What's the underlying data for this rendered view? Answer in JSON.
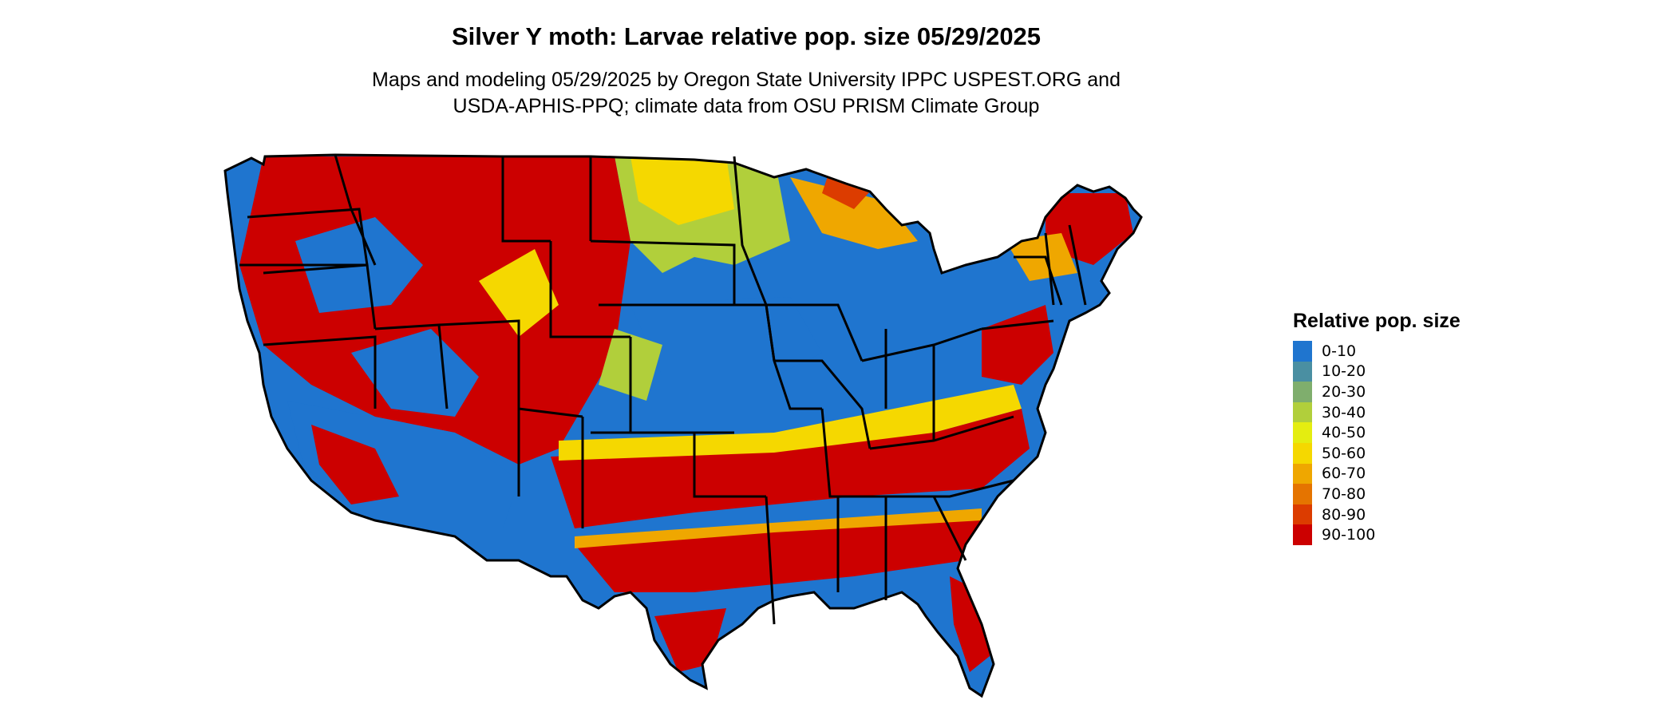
{
  "title": "Silver Y moth: Larvae relative pop. size 05/29/2025",
  "subtitle_line1": "Maps and modeling 05/29/2025 by Oregon State University IPPC USPEST.ORG and",
  "subtitle_line2": "USDA-APHIS-PPQ; climate data from OSU PRISM Climate Group",
  "legend": {
    "title": "Relative pop. size",
    "items": [
      {
        "label": "0-10",
        "color": "#1f75cf"
      },
      {
        "label": "10-20",
        "color": "#4a8fa2"
      },
      {
        "label": "20-30",
        "color": "#7fae6d"
      },
      {
        "label": "30-40",
        "color": "#b1cf3b"
      },
      {
        "label": "40-50",
        "color": "#e4ed10"
      },
      {
        "label": "50-60",
        "color": "#f5d800"
      },
      {
        "label": "60-70",
        "color": "#efa700"
      },
      {
        "label": "70-80",
        "color": "#e57400"
      },
      {
        "label": "80-90",
        "color": "#dc3c00"
      },
      {
        "label": "90-100",
        "color": "#cc0000"
      }
    ]
  },
  "map": {
    "region": "Contiguous United States",
    "fill_palette": {
      "low": "#1f75cf",
      "mid": "#f5d800",
      "high": "#cc0000"
    }
  }
}
